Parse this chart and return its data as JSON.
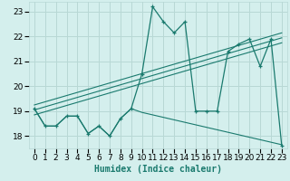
{
  "title": "",
  "xlabel": "Humidex (Indice chaleur)",
  "background_color": "#d4efed",
  "grid_color": "#b8d8d5",
  "line_color": "#1a7a6e",
  "x_ticks": [
    0,
    1,
    2,
    3,
    4,
    5,
    6,
    7,
    8,
    9,
    10,
    11,
    12,
    13,
    14,
    15,
    16,
    17,
    18,
    19,
    20,
    21,
    22,
    23
  ],
  "y_ticks": [
    18,
    19,
    20,
    21,
    22,
    23
  ],
  "ylim": [
    17.5,
    23.4
  ],
  "xlim": [
    -0.5,
    23.5
  ],
  "main_line_x": [
    0,
    1,
    2,
    3,
    4,
    5,
    6,
    7,
    8,
    9,
    10,
    11,
    12,
    13,
    14,
    15,
    16,
    17,
    18,
    19,
    20,
    21,
    22,
    23
  ],
  "main_line_y": [
    19.1,
    18.4,
    18.4,
    18.8,
    18.8,
    18.1,
    18.4,
    18.0,
    18.7,
    19.1,
    20.5,
    23.2,
    22.6,
    22.15,
    22.6,
    19.0,
    19.0,
    19.0,
    21.4,
    21.7,
    21.9,
    20.8,
    21.9,
    17.6
  ],
  "trend_line1_x": [
    0,
    23
  ],
  "trend_line1_y": [
    19.05,
    21.95
  ],
  "trend_line2_x": [
    0,
    23
  ],
  "trend_line2_y": [
    18.85,
    21.75
  ],
  "trend_line3_x": [
    0,
    23
  ],
  "trend_line3_y": [
    19.25,
    22.15
  ],
  "low_line_x": [
    0,
    1,
    2,
    3,
    4,
    5,
    6,
    7,
    8,
    9,
    10,
    11,
    12,
    13,
    14,
    15,
    16,
    17,
    18,
    19,
    20,
    21,
    22,
    23
  ],
  "low_line_y": [
    19.1,
    18.4,
    18.4,
    18.8,
    18.8,
    18.1,
    18.4,
    18.0,
    18.7,
    19.1,
    18.95,
    18.85,
    18.75,
    18.65,
    18.55,
    18.45,
    18.35,
    18.25,
    18.15,
    18.05,
    17.95,
    17.85,
    17.75,
    17.65
  ],
  "xlabel_fontsize": 7,
  "tick_fontsize": 6.5
}
